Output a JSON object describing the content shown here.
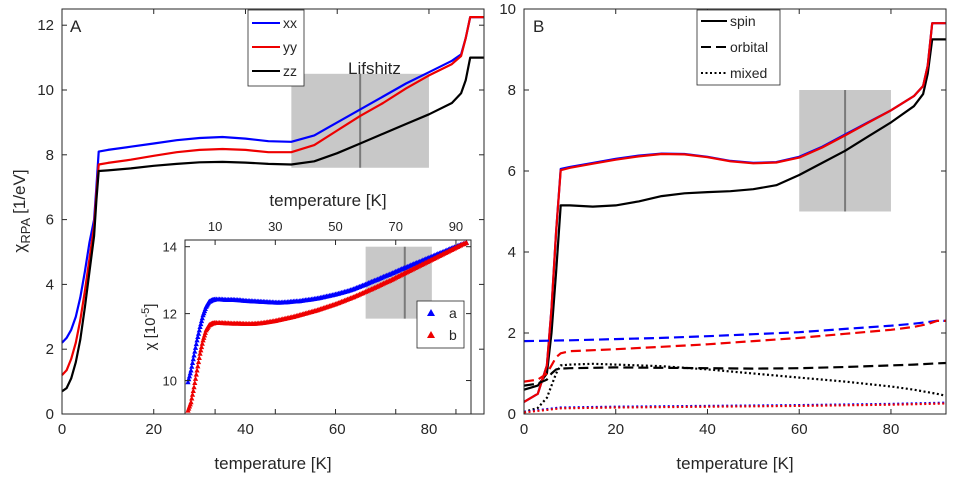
{
  "chart_data": [
    {
      "panel": "A",
      "type": "line",
      "xlabel": "temperature [K]",
      "ylabel": "χ",
      "ylabel_sub": "RPA",
      "ylabel_unit": "[1/eV]",
      "xlim": [
        0,
        92
      ],
      "ylim": [
        0,
        12.5
      ],
      "xticks": [
        0,
        20,
        40,
        60,
        80
      ],
      "yticks": [
        0,
        2,
        4,
        6,
        8,
        10,
        12
      ],
      "legend": [
        "xx",
        "yy",
        "zz"
      ],
      "legend_position": "top-center",
      "annotation": "Lifshitz",
      "shaded_region": {
        "x": [
          50,
          80
        ],
        "y": [
          7.6,
          10.5
        ],
        "center_line_x": 65
      },
      "series": [
        {
          "name": "xx",
          "color": "#0000ff",
          "x": [
            0,
            1,
            2,
            3,
            4,
            5,
            6,
            7,
            7.5,
            8,
            10,
            15,
            20,
            25,
            30,
            35,
            40,
            45,
            50,
            55,
            60,
            65,
            70,
            75,
            80,
            85,
            87,
            88,
            89,
            90,
            92
          ],
          "y": [
            2.2,
            2.35,
            2.6,
            3.0,
            3.6,
            4.4,
            5.3,
            6.0,
            7.0,
            8.1,
            8.15,
            8.25,
            8.35,
            8.45,
            8.52,
            8.55,
            8.5,
            8.42,
            8.4,
            8.6,
            9.0,
            9.4,
            9.8,
            10.2,
            10.55,
            10.9,
            11.1,
            11.6,
            12.25,
            12.25,
            12.25
          ]
        },
        {
          "name": "yy",
          "color": "#ee0000",
          "x": [
            0,
            1,
            2,
            3,
            4,
            5,
            6,
            7,
            7.5,
            8,
            10,
            15,
            20,
            25,
            30,
            35,
            40,
            45,
            50,
            55,
            60,
            65,
            70,
            75,
            80,
            85,
            87,
            88,
            89,
            90,
            92
          ],
          "y": [
            1.2,
            1.35,
            1.7,
            2.2,
            2.9,
            3.8,
            4.8,
            5.8,
            6.8,
            7.7,
            7.75,
            7.85,
            7.97,
            8.08,
            8.15,
            8.18,
            8.15,
            8.08,
            8.08,
            8.3,
            8.75,
            9.2,
            9.6,
            10.05,
            10.45,
            10.8,
            11.05,
            11.6,
            12.25,
            12.25,
            12.25
          ]
        },
        {
          "name": "zz",
          "color": "#000000",
          "x": [
            0,
            1,
            2,
            3,
            4,
            5,
            6,
            7,
            7.5,
            8,
            10,
            15,
            20,
            25,
            30,
            35,
            40,
            45,
            50,
            55,
            60,
            65,
            70,
            75,
            80,
            85,
            87,
            88,
            89,
            90,
            92
          ],
          "y": [
            0.7,
            0.8,
            1.1,
            1.6,
            2.3,
            3.3,
            4.4,
            5.5,
            6.6,
            7.5,
            7.52,
            7.58,
            7.66,
            7.72,
            7.77,
            7.78,
            7.76,
            7.72,
            7.7,
            7.8,
            8.05,
            8.35,
            8.65,
            8.95,
            9.25,
            9.6,
            9.9,
            10.3,
            11.0,
            11.0,
            11.0
          ]
        }
      ]
    },
    {
      "panel": "A-inset",
      "type": "scatter",
      "xlabel": "temperature [K]",
      "ylabel": "χ [10",
      "ylabel_exp": "-5",
      "ylabel_close": "]",
      "xlim": [
        0,
        95
      ],
      "ylim": [
        9.0,
        14.2
      ],
      "xticks": [
        10,
        30,
        50,
        70,
        90
      ],
      "yticks": [
        10,
        12,
        14
      ],
      "legend": [
        "a",
        "b"
      ],
      "legend_position": "bottom-right",
      "shaded_region": {
        "x": [
          60,
          82
        ],
        "y": [
          11.85,
          14.0
        ],
        "center_line_x": 73
      },
      "series": [
        {
          "name": "a",
          "color": "#0000ff",
          "marker": "triangle",
          "x": [
            1,
            2,
            3,
            4,
            5,
            6,
            7,
            8,
            9,
            10,
            12,
            14,
            16,
            18,
            20,
            22,
            24,
            26,
            28,
            30,
            32,
            34,
            36,
            38,
            40,
            42,
            44,
            46,
            48,
            50,
            52,
            54,
            56,
            58,
            60,
            62,
            64,
            66,
            68,
            70,
            72,
            74,
            76,
            78,
            80,
            82,
            84,
            86,
            88,
            90,
            92,
            94
          ],
          "y": [
            9.95,
            10.3,
            10.75,
            11.2,
            11.6,
            11.95,
            12.2,
            12.35,
            12.4,
            12.42,
            12.42,
            12.41,
            12.41,
            12.4,
            12.38,
            12.37,
            12.36,
            12.35,
            12.34,
            12.33,
            12.33,
            12.34,
            12.36,
            12.37,
            12.4,
            12.42,
            12.45,
            12.49,
            12.53,
            12.57,
            12.62,
            12.67,
            12.73,
            12.8,
            12.87,
            12.95,
            13.02,
            13.1,
            13.17,
            13.25,
            13.33,
            13.4,
            13.48,
            13.55,
            13.63,
            13.7,
            13.78,
            13.85,
            13.93,
            14.0,
            14.07,
            14.13
          ]
        },
        {
          "name": "b",
          "color": "#ee0000",
          "marker": "triangle",
          "x": [
            1,
            2,
            3,
            4,
            5,
            6,
            7,
            8,
            9,
            10,
            12,
            14,
            16,
            18,
            20,
            22,
            24,
            26,
            28,
            30,
            32,
            34,
            36,
            38,
            40,
            42,
            44,
            46,
            48,
            50,
            52,
            54,
            56,
            58,
            60,
            62,
            64,
            66,
            68,
            70,
            72,
            74,
            76,
            78,
            80,
            82,
            84,
            86,
            88,
            90,
            92,
            94
          ],
          "y": [
            9.1,
            9.35,
            9.8,
            10.3,
            10.8,
            11.2,
            11.5,
            11.65,
            11.7,
            11.72,
            11.72,
            11.71,
            11.7,
            11.7,
            11.69,
            11.69,
            11.7,
            11.72,
            11.75,
            11.78,
            11.82,
            11.86,
            11.9,
            11.95,
            12.0,
            12.05,
            12.1,
            12.16,
            12.22,
            12.28,
            12.35,
            12.42,
            12.49,
            12.57,
            12.65,
            12.73,
            12.81,
            12.9,
            12.98,
            13.07,
            13.16,
            13.25,
            13.34,
            13.43,
            13.52,
            13.61,
            13.7,
            13.79,
            13.88,
            13.97,
            14.06,
            14.13
          ]
        }
      ]
    },
    {
      "panel": "B",
      "type": "line",
      "xlabel": "temperature [K]",
      "xlim": [
        0,
        92
      ],
      "ylim": [
        0,
        10
      ],
      "xticks": [
        0,
        20,
        40,
        60,
        80
      ],
      "yticks": [
        0,
        2,
        4,
        6,
        8,
        10
      ],
      "legend": [
        "spin",
        "orbital",
        "mixed"
      ],
      "legend_position": "top-center",
      "shaded_region": {
        "x": [
          60,
          80
        ],
        "y": [
          5.0,
          8.0
        ],
        "center_line_x": 70
      },
      "series": [
        {
          "name": "spin (zz)",
          "color": "#000000",
          "dash": "solid",
          "x": [
            0,
            3,
            5,
            6,
            7,
            8,
            10,
            15,
            20,
            25,
            30,
            35,
            40,
            45,
            50,
            55,
            60,
            65,
            70,
            75,
            80,
            85,
            87,
            88,
            89,
            90,
            92
          ],
          "y": [
            0.6,
            0.7,
            1.0,
            2.0,
            3.5,
            5.15,
            5.15,
            5.12,
            5.15,
            5.25,
            5.38,
            5.45,
            5.48,
            5.5,
            5.55,
            5.65,
            5.9,
            6.2,
            6.5,
            6.85,
            7.2,
            7.6,
            7.9,
            8.4,
            9.25,
            9.25,
            9.25
          ]
        },
        {
          "name": "spin (xx)",
          "color": "#0000ff",
          "dash": "solid",
          "x": [
            0,
            3,
            5,
            6,
            7,
            8,
            10,
            15,
            20,
            25,
            30,
            35,
            40,
            45,
            50,
            55,
            60,
            65,
            70,
            75,
            80,
            85,
            87,
            88,
            89,
            90,
            92
          ],
          "y": [
            0.3,
            0.5,
            1.2,
            2.6,
            4.5,
            6.05,
            6.1,
            6.2,
            6.3,
            6.38,
            6.43,
            6.42,
            6.35,
            6.25,
            6.2,
            6.22,
            6.35,
            6.6,
            6.9,
            7.2,
            7.5,
            7.85,
            8.1,
            8.6,
            9.65,
            9.65,
            9.65
          ]
        },
        {
          "name": "spin (yy)",
          "color": "#ee0000",
          "dash": "solid",
          "x": [
            0,
            3,
            5,
            6,
            7,
            8,
            10,
            15,
            20,
            25,
            30,
            35,
            40,
            45,
            50,
            55,
            60,
            65,
            70,
            75,
            80,
            85,
            87,
            88,
            89,
            90,
            92
          ],
          "y": [
            0.3,
            0.5,
            1.2,
            2.6,
            4.5,
            6.02,
            6.08,
            6.18,
            6.28,
            6.36,
            6.42,
            6.41,
            6.34,
            6.24,
            6.19,
            6.21,
            6.33,
            6.58,
            6.88,
            7.19,
            7.5,
            7.85,
            8.1,
            8.6,
            9.65,
            9.65,
            9.65
          ]
        },
        {
          "name": "orbital (xx)",
          "color": "#0000ff",
          "dash": "dashed",
          "x": [
            0,
            10,
            20,
            30,
            40,
            50,
            60,
            70,
            80,
            85,
            88,
            90,
            92
          ],
          "y": [
            1.8,
            1.82,
            1.85,
            1.88,
            1.92,
            1.97,
            2.02,
            2.1,
            2.18,
            2.23,
            2.27,
            2.3,
            2.3
          ]
        },
        {
          "name": "orbital (yy)",
          "color": "#ee0000",
          "dash": "dashed",
          "x": [
            0,
            3,
            5,
            6,
            7,
            8,
            10,
            20,
            30,
            40,
            50,
            60,
            70,
            80,
            85,
            88,
            90,
            92
          ],
          "y": [
            0.8,
            0.85,
            1.0,
            1.2,
            1.4,
            1.5,
            1.55,
            1.6,
            1.66,
            1.72,
            1.8,
            1.88,
            1.98,
            2.08,
            2.15,
            2.22,
            2.3,
            2.3
          ]
        },
        {
          "name": "orbital (zz)",
          "color": "#000000",
          "dash": "dashed",
          "x": [
            0,
            3,
            5,
            6,
            7,
            8,
            10,
            20,
            30,
            40,
            50,
            60,
            70,
            80,
            85,
            90,
            92
          ],
          "y": [
            0.7,
            0.75,
            0.85,
            1.0,
            1.1,
            1.12,
            1.13,
            1.15,
            1.14,
            1.13,
            1.12,
            1.13,
            1.16,
            1.2,
            1.22,
            1.25,
            1.26
          ]
        },
        {
          "name": "mixed (zz)",
          "color": "#000000",
          "dash": "dotted",
          "x": [
            0,
            3,
            5,
            6,
            7,
            8,
            10,
            15,
            20,
            30,
            40,
            50,
            60,
            70,
            80,
            85,
            90,
            92
          ],
          "y": [
            0.05,
            0.15,
            0.4,
            0.7,
            1.0,
            1.2,
            1.22,
            1.24,
            1.22,
            1.18,
            1.1,
            1.0,
            0.9,
            0.8,
            0.68,
            0.6,
            0.5,
            0.45
          ]
        },
        {
          "name": "mixed (xx)",
          "color": "#0000ff",
          "dash": "dotted",
          "x": [
            0,
            5,
            8,
            20,
            40,
            60,
            80,
            92
          ],
          "y": [
            0.05,
            0.12,
            0.16,
            0.18,
            0.2,
            0.22,
            0.25,
            0.28
          ]
        },
        {
          "name": "mixed (yy)",
          "color": "#ee0000",
          "dash": "dotted",
          "x": [
            0,
            5,
            8,
            20,
            40,
            60,
            80,
            92
          ],
          "y": [
            0.04,
            0.1,
            0.14,
            0.16,
            0.18,
            0.2,
            0.23,
            0.26
          ]
        }
      ]
    }
  ],
  "panel_letters": {
    "a": "A",
    "b": "B"
  }
}
